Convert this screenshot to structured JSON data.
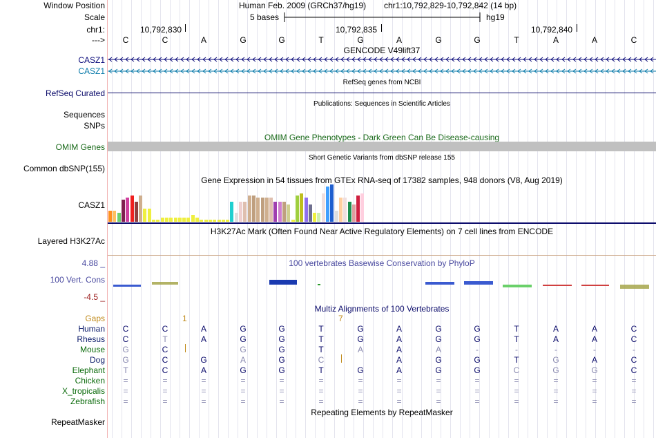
{
  "header": {
    "assembly": "Human Feb. 2009 (GRCh37/hg19)",
    "position": "chr1:10,792,829-10,792,842 (14 bp)",
    "scale_text": "5 bases",
    "scale_db": "hg19"
  },
  "labels": {
    "window_position": "Window Position",
    "scale": "Scale",
    "chr": "chr1:",
    "arrow": "--->",
    "casz1_a": "CASZ1",
    "casz1_b": "CASZ1",
    "refseq": "RefSeq Curated",
    "sequences": "Sequences",
    "snps": "SNPs",
    "omim": "OMIM Genes",
    "dbsnp": "Common dbSNP(155)",
    "gtex_gene": "CASZ1",
    "h3k27": "Layered H3K27Ac",
    "cons_max": "4.88 _",
    "cons_label": "100 Vert. Cons",
    "cons_min": "-4.5 _",
    "gaps": "Gaps",
    "repeatmasker": "RepeatMasker"
  },
  "coords": [
    "10,792,830",
    "10,792,835",
    "10,792,840"
  ],
  "bases": [
    "C",
    "C",
    "A",
    "G",
    "G",
    "T",
    "G",
    "A",
    "G",
    "G",
    "T",
    "A",
    "A",
    "C"
  ],
  "tracks": {
    "gencode": "GENCODE V49lift37",
    "refseq": "RefSeq genes from NCBI",
    "publications": "Publications: Sequences in Scientific Articles",
    "omim": "OMIM Gene Phenotypes - Dark Green Can Be Disease-causing",
    "dbsnp": "Short Genetic Variants from dbSNP release 155",
    "gtex": "Gene Expression in 54 tissues from GTEx RNA-seq of 17382 samples, 948 donors (V8, Aug 2019)",
    "h3k27": "H3K27Ac Mark (Often Found Near Active Regulatory Elements) on 7 cell lines from ENCODE",
    "phylop": "100 vertebrates Basewise Conservation by PhyloP",
    "multiz": "Multiz Alignments of 100 Vertebrates",
    "repeatmasker": "Repeating Elements by RepeatMasker"
  },
  "gaps": [
    "1",
    "7"
  ],
  "gtex_values": [
    5,
    5,
    4,
    10,
    11,
    12,
    9,
    12,
    6,
    6,
    1,
    1,
    2,
    2,
    2,
    2,
    2,
    2,
    2,
    3,
    2,
    1,
    1,
    1,
    1,
    1,
    1,
    1,
    9,
    4,
    9,
    9,
    12,
    12,
    11,
    11,
    11,
    11,
    9,
    9,
    9,
    8,
    1,
    12,
    13,
    11,
    8,
    4,
    4,
    13,
    16,
    17,
    5,
    11,
    11,
    9,
    8,
    12,
    13,
    4
  ],
  "species": [
    {
      "name": "Human",
      "color": "#0a1a6a",
      "seq": [
        "C",
        "C",
        "A",
        "G",
        "G",
        "T",
        "G",
        "A",
        "G",
        "G",
        "T",
        "A",
        "A",
        "C"
      ],
      "dim": []
    },
    {
      "name": "Rhesus",
      "color": "#0a1a6a",
      "seq": [
        "C",
        "T",
        "A",
        "G",
        "G",
        "T",
        "G",
        "A",
        "G",
        "G",
        "T",
        "A",
        "A",
        "C"
      ],
      "dim": [
        1
      ]
    },
    {
      "name": "Mouse",
      "color": "#0a6a0a",
      "seq": [
        "G",
        "C",
        "",
        "G",
        "G",
        "T",
        "A",
        "A",
        "A",
        "-",
        "-",
        "-",
        "-",
        "-"
      ],
      "dim": [
        0,
        3,
        6,
        8,
        9,
        10,
        11,
        12,
        13
      ]
    },
    {
      "name": "Dog",
      "color": "#0a1a6a",
      "seq": [
        "G",
        "C",
        "G",
        "A",
        "G",
        "C",
        "",
        "A",
        "G",
        "G",
        "T",
        "G",
        "A",
        "C"
      ],
      "dim": [
        0,
        3,
        5,
        11
      ]
    },
    {
      "name": "Elephant",
      "color": "#0a6a0a",
      "seq": [
        "T",
        "C",
        "A",
        "G",
        "G",
        "T",
        "G",
        "A",
        "G",
        "G",
        "C",
        "G",
        "G",
        "C"
      ],
      "dim": [
        0,
        10,
        11,
        12
      ]
    },
    {
      "name": "Chicken",
      "color": "#0a6a0a",
      "seq": [
        "=",
        "=",
        "=",
        "=",
        "=",
        "=",
        "=",
        "=",
        "=",
        "=",
        "=",
        "=",
        "=",
        "="
      ],
      "dim": []
    },
    {
      "name": "X_tropicalis",
      "color": "#0a6a0a",
      "seq": [
        "=",
        "=",
        "=",
        "=",
        "=",
        "=",
        "=",
        "=",
        "=",
        "=",
        "=",
        "=",
        "=",
        "="
      ],
      "dim": []
    },
    {
      "name": "Zebrafish",
      "color": "#0a6a0a",
      "seq": [
        "=",
        "=",
        "=",
        "=",
        "=",
        "=",
        "=",
        "=",
        "=",
        "=",
        "=",
        "=",
        "=",
        "="
      ],
      "dim": []
    }
  ],
  "colors": {
    "gene_blue": "#0a0a7a",
    "gene_teal": "#0a7aaa",
    "omim_green": "#1a6a1a",
    "refseq_navy": "#0a0a6a",
    "gaps_orange": "#c08a1a",
    "cons_red": "#9a1a1a",
    "phylop_blue": "#4a4aa0"
  }
}
